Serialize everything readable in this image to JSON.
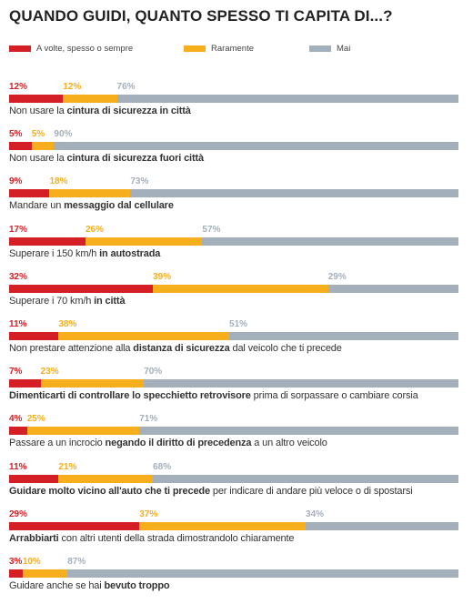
{
  "title": "QUANDO GUIDI, QUANTO SPESSO TI CAPITA DI...?",
  "colors": {
    "often": "#d41f26",
    "rarely": "#f6ae1c",
    "never": "#a3afbb"
  },
  "chart_data": {
    "type": "bar",
    "stacked": true,
    "orientation": "horizontal",
    "title": "QUANDO GUIDI, QUANTO SPESSO TI CAPITA DI...?",
    "legend": [
      "A volte, spesso o sempre",
      "Raramente",
      "Mai"
    ],
    "legend_placement": "top",
    "categories": [
      "Non usare la cintura di sicurezza in città",
      "Non usare la cintura di sicurezza fuori città",
      "Mandare un messaggio dal cellulare",
      "Superare i 150 km/h in autostrada",
      "Superare i 70 km/h in città",
      "Non prestare attenzione alla distanza di sicurezza dal veicolo che ti precede",
      "Dimenticarti di controllare lo specchietto retrovisore prima di sorpassare o cambiare corsia",
      "Passare a un incrocio negando il diritto di precedenza a un altro veicolo",
      "Guidare molto vicino all'auto che ti precede per indicare di andare più veloce o di spostarsi",
      "Arrabbiarti con altri utenti della strada dimostrandolo chiaramente",
      "Guidare anche se hai bevuto troppo"
    ],
    "series": [
      {
        "name": "A volte, spesso o sempre",
        "values": [
          12,
          5,
          9,
          17,
          32,
          11,
          7,
          4,
          11,
          29,
          3
        ]
      },
      {
        "name": "Raramente",
        "values": [
          12,
          5,
          18,
          26,
          39,
          38,
          23,
          25,
          21,
          37,
          10
        ]
      },
      {
        "name": "Mai",
        "values": [
          76,
          90,
          73,
          57,
          29,
          51,
          70,
          71,
          68,
          34,
          87
        ]
      }
    ],
    "labels": [
      [
        {
          "t": "Non usare la "
        },
        {
          "t": "cintura di sicurezza in città",
          "b": true
        }
      ],
      [
        {
          "t": "Non usare la "
        },
        {
          "t": "cintura di sicurezza fuori città",
          "b": true
        }
      ],
      [
        {
          "t": "Mandare un "
        },
        {
          "t": "messaggio dal cellulare",
          "b": true
        }
      ],
      [
        {
          "t": "Superare i 150 km/h "
        },
        {
          "t": "in autostrada",
          "b": true
        }
      ],
      [
        {
          "t": "Superare i 70 km/h "
        },
        {
          "t": "in città",
          "b": true
        }
      ],
      [
        {
          "t": "Non prestare attenzione alla "
        },
        {
          "t": "distanza di sicurezza",
          "b": true
        },
        {
          "t": " dal veicolo che ti precede"
        }
      ],
      [
        {
          "t": "Dimenticarti di controllare lo specchietto retrovisore",
          "b": true
        },
        {
          "t": " prima di sorpassare o cambiare corsia"
        }
      ],
      [
        {
          "t": "Passare a un incrocio "
        },
        {
          "t": "negando il diritto di precedenza",
          "b": true
        },
        {
          "t": " a un altro veicolo"
        }
      ],
      [
        {
          "t": "Guidare molto vicino all'auto che ti precede",
          "b": true
        },
        {
          "t": " per indicare di andare più veloce o di spostarsi"
        }
      ],
      [
        {
          "t": "Arrabbiarti",
          "b": true
        },
        {
          "t": " con altri utenti della strada dimostrandolo chiaramente"
        }
      ],
      [
        {
          "t": "Guidare anche se hai "
        },
        {
          "t": "bevuto troppo",
          "b": true
        }
      ]
    ]
  }
}
